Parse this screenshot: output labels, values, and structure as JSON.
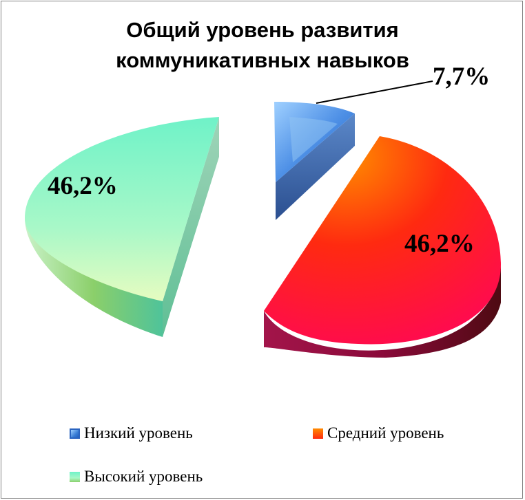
{
  "chart_data": {
    "type": "pie",
    "title_lines": [
      "Общий уровень развития",
      "коммуникативных навыков"
    ],
    "categories": [
      "Низкий уровень",
      "Средний уровень",
      "Высокий уровень"
    ],
    "values": [
      7.7,
      46.2,
      46.2
    ],
    "data_labels": [
      "7,7%",
      "46,2%",
      "46,2%"
    ],
    "colors": [
      "#3a7fd6",
      "#ff2a10",
      "#7ff5c8"
    ],
    "legend_position": "bottom",
    "style": "3d exploded"
  },
  "legend": {
    "items": [
      {
        "label": "Низкий уровень",
        "color": "#3a7fd6"
      },
      {
        "label": "Средний уровень",
        "color": "#ff3a00"
      },
      {
        "label": "Высокий уровень",
        "color": "#7ff5c8"
      }
    ]
  }
}
